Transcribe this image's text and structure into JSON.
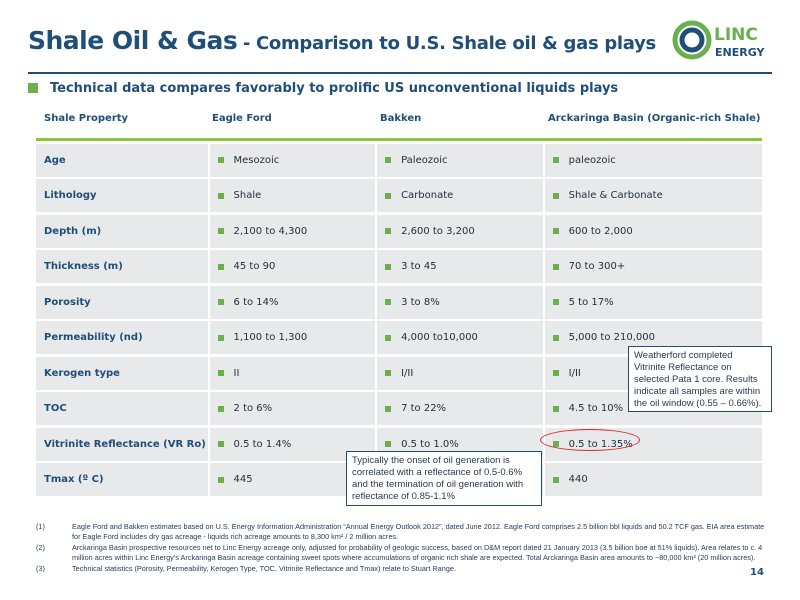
{
  "slide": {
    "title_main": "Shale Oil & Gas",
    "title_sub": "- Comparison to U.S. Shale oil & gas plays",
    "subtitle": "Technical data compares favorably to prolific US unconventional liquids plays",
    "page_number": "14"
  },
  "logo": {
    "line1": "LINC",
    "line2": "ENERGY",
    "icon": "linc-energy-logo",
    "colors": {
      "ring_blue": "#1f4e79",
      "ring_green": "#6ab04c"
    }
  },
  "table": {
    "headers": [
      "Shale Property",
      "Eagle Ford",
      "Bakken",
      "Arckaringa Basin (Organic-rich Shale)"
    ],
    "rows": [
      [
        "Age",
        "Mesozoic",
        "Paleozoic",
        "paleozoic"
      ],
      [
        "Lithology",
        "Shale",
        "Carbonate",
        "Shale & Carbonate"
      ],
      [
        "Depth (m)",
        "2,100 to 4,300",
        "2,600 to 3,200",
        "600 to 2,000"
      ],
      [
        "Thickness (m)",
        "45 to 90",
        "3 to 45",
        "70 to 300+"
      ],
      [
        "Porosity",
        "6 to 14%",
        "3 to 8%",
        "5 to 17%"
      ],
      [
        "Permeability (nd)",
        "1,100 to 1,300",
        "4,000 to10,000",
        "5,000 to 210,000"
      ],
      [
        "Kerogen type",
        "II",
        "I/II",
        "I/II"
      ],
      [
        "TOC",
        "2 to 6%",
        "7 to 22%",
        "4.5 to 10%"
      ],
      [
        "Vitrinite Reflectance (VR Ro)",
        "0.5 to 1.4%",
        "0.5 to 1.0%",
        "0.5 to 1.35%"
      ],
      [
        "Tmax (º C)",
        "445",
        "",
        "440"
      ]
    ]
  },
  "callouts": {
    "weatherford": "Weatherford completed Vitrinite Reflectance on selected Pata 1 core. Results indicate all samples are within the oil window (0.55 – 0.66%).",
    "oil_generation": "Typically the onset of oil generation is correlated with a reflectance of 0.5-0.6% and the termination of oil generation with reflectance of 0.85-1.1%"
  },
  "footnotes": [
    {
      "num": "(1)",
      "text": "Eagle Ford and Bakken estimates based on U.S. Energy Information Administration “Annual Energy Outlook 2012”, dated June 2012. Eagle Ford comprises 2.5 billion bbl liquids and 50.2 TCF gas. EIA area estimate for Eagle Ford includes dry gas acreage - liquids rich acreage amounts to 8,300 km² / 2 million acres."
    },
    {
      "num": "(2)",
      "text": "Arckaringa Basin prospective resources net to Linc Energy acreage only, adjusted for probability of geologic success, based on D&M report dated 21 January 2013 (3.5 billion boe at 51% liquids). Area relates to c. 4 million acres within Linc Energy’s Arckaringa Basin acreage containing sweet spots where accumulations of organic rich shale are expected. Total Arckaringa Basin area amounts to ~80,000 km² (20 million acres)."
    },
    {
      "num": "(3)",
      "text": "Technical statistics (Porosity, Permeability, Kerogen Type, TOC, Vitrinite Reflectance and Tmax) relate to Stuart Range."
    }
  ],
  "colors": {
    "navy": "#1f4e79",
    "green": "#6ab04c",
    "rule_green": "#8cc63f",
    "cell_bg": "#e8e9eb",
    "highlight_red": "#d9282f"
  }
}
